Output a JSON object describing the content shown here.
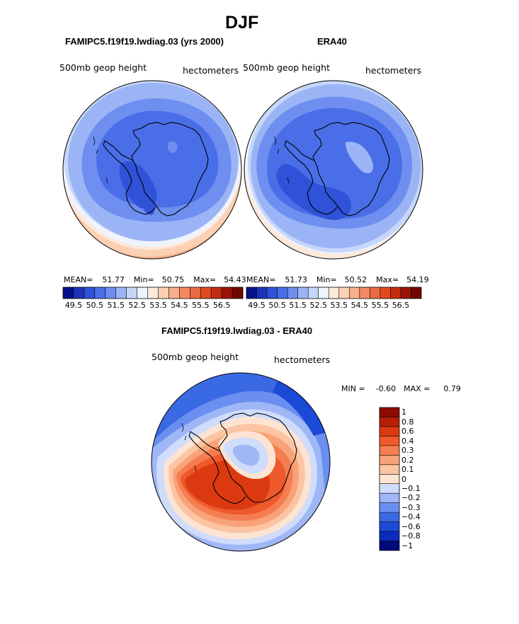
{
  "page": {
    "season_title": "DJF",
    "diff_title": "FAMIPC5.f19f19.lwdiag.03 - ERA40"
  },
  "panels": [
    {
      "id": "model",
      "title": "FAMIPC5.f19f19.lwdiag.03 (yrs 2000)",
      "variable": "500mb geop height",
      "units": "hectometers",
      "stats": {
        "mean_label": "MEAN=",
        "mean": "51.77",
        "min_label": "Min=",
        "min": "50.75",
        "max_label": "Max=",
        "max": "54.43"
      }
    },
    {
      "id": "obs",
      "title": "ERA40",
      "variable": "500mb geop height",
      "units": "hectometers",
      "stats": {
        "mean_label": "MEAN=",
        "mean": "51.73",
        "min_label": "Min=",
        "min": "50.52",
        "max_label": "Max=",
        "max": "54.19"
      }
    }
  ],
  "abs_colorbar": {
    "colors": [
      "#08108a",
      "#1e34b8",
      "#2f52d8",
      "#4a6ee8",
      "#6e8ff0",
      "#9bb4f5",
      "#c6d7fa",
      "#eef3fd",
      "#fde9dc",
      "#fbd0b4",
      "#f8b08c",
      "#f38a62",
      "#ec6a40",
      "#df4a1e",
      "#c62c10",
      "#9a1406",
      "#700800"
    ],
    "tick_labels": [
      "49.5",
      "50.5",
      "51.5",
      "52.5",
      "53.5",
      "54.5",
      "55.5",
      "56.5"
    ]
  },
  "diff_panel": {
    "variable": "500mb geop height",
    "units": "hectometers",
    "min_label": "MIN =",
    "min": "-0.60",
    "max_label": "MAX =",
    "max": "0.79"
  },
  "diff_colorbar": {
    "colors": [
      "#000a7a",
      "#0b2bbd",
      "#1a4ad6",
      "#3a69e4",
      "#6a8ef0",
      "#9fb7f6",
      "#cfdcfb",
      "#fde3d2",
      "#fbc4a2",
      "#f8a279",
      "#f47e52",
      "#ee5a2c",
      "#db3a10",
      "#b71e04",
      "#8c0a00"
    ],
    "labels": [
      "1",
      "0.8",
      "0.6",
      "0.4",
      "0.3",
      "0.2",
      "0.1",
      "0",
      "−0.1",
      "−0.2",
      "−0.3",
      "−0.4",
      "−0.6",
      "−0.8",
      "−1"
    ]
  },
  "chart_data": [
    {
      "type": "heatmap",
      "title": "FAMIPC5.f19f19.lwdiag.03 (yrs 2000)",
      "projection": "south-polar-stereographic",
      "variable": "500mb geop height",
      "units": "hectometers",
      "mean": 51.77,
      "min": 50.75,
      "max": 54.43,
      "contour_levels": [
        49.5,
        50,
        50.5,
        51,
        51.5,
        52,
        52.5,
        53,
        53.5,
        54,
        54.5,
        55,
        55.5,
        56,
        56.5
      ]
    },
    {
      "type": "heatmap",
      "title": "ERA40",
      "projection": "south-polar-stereographic",
      "variable": "500mb geop height",
      "units": "hectometers",
      "mean": 51.73,
      "min": 50.52,
      "max": 54.19,
      "contour_levels": [
        49.5,
        50,
        50.5,
        51,
        51.5,
        52,
        52.5,
        53,
        53.5,
        54,
        54.5,
        55,
        55.5,
        56,
        56.5
      ]
    },
    {
      "type": "heatmap",
      "title": "FAMIPC5.f19f19.lwdiag.03 - ERA40",
      "projection": "south-polar-stereographic",
      "variable": "500mb geop height",
      "units": "hectometers",
      "min": -0.6,
      "max": 0.79,
      "contour_levels": [
        -1,
        -0.8,
        -0.6,
        -0.4,
        -0.3,
        -0.2,
        -0.1,
        0,
        0.1,
        0.2,
        0.3,
        0.4,
        0.6,
        0.8,
        1
      ]
    }
  ]
}
